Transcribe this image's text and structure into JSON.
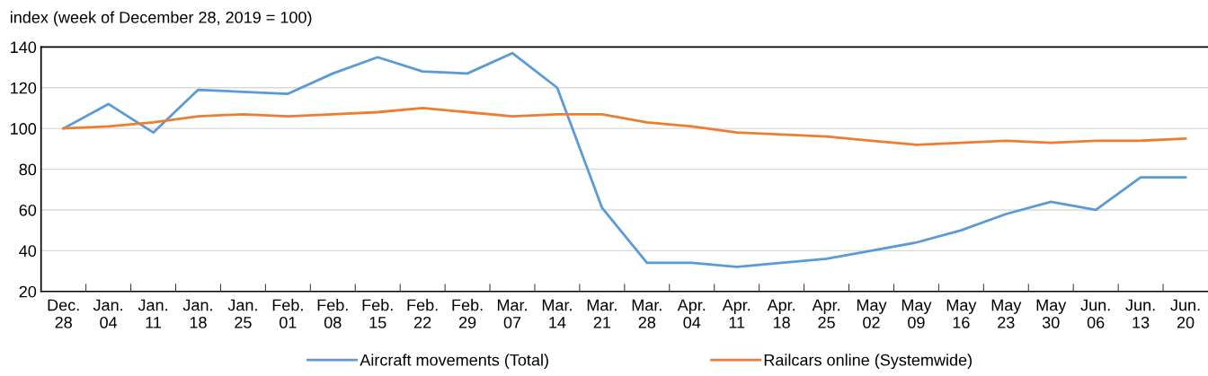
{
  "chart_data": {
    "type": "line",
    "ylabel": "index (week of December 28, 2019 = 100)",
    "categories": [
      "Dec.\n28",
      "Jan.\n04",
      "Jan.\n11",
      "Jan.\n18",
      "Jan.\n25",
      "Feb.\n01",
      "Feb.\n08",
      "Feb.\n15",
      "Feb.\n22",
      "Feb.\n29",
      "Mar.\n07",
      "Mar.\n14",
      "Mar.\n21",
      "Mar.\n28",
      "Apr.\n04",
      "Apr.\n11",
      "Apr.\n18",
      "Apr.\n25",
      "May\n02",
      "May\n09",
      "May\n16",
      "May\n23",
      "May\n30",
      "Jun.\n06",
      "Jun.\n13",
      "Jun.\n20"
    ],
    "series": [
      {
        "name": "Aircraft movements (Total)",
        "color": "#5b9bd5",
        "values": [
          100,
          112,
          98,
          119,
          118,
          117,
          127,
          135,
          128,
          127,
          137,
          120,
          61,
          34,
          34,
          32,
          34,
          36,
          40,
          44,
          50,
          58,
          64,
          60,
          76,
          76
        ]
      },
      {
        "name": "Railcars online (Systemwide)",
        "color": "#ed7d31",
        "values": [
          100,
          101,
          103,
          106,
          107,
          106,
          107,
          108,
          110,
          108,
          106,
          107,
          107,
          103,
          101,
          98,
          97,
          96,
          94,
          92,
          93,
          94,
          93,
          94,
          94,
          95
        ]
      }
    ],
    "ylim": [
      20,
      140
    ],
    "yticks": [
      20,
      40,
      60,
      80,
      100,
      120,
      140
    ],
    "grid": "y",
    "legend": "bottom",
    "marker": "none",
    "line_style": "solid"
  }
}
